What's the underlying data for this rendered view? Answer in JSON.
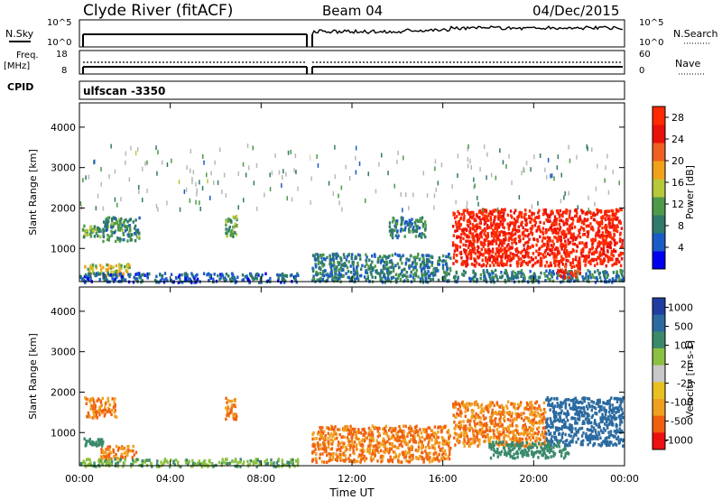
{
  "header": {
    "station": "Clyde River (fitACF)",
    "beam": "Beam 04",
    "date": "04/Dec/2015"
  },
  "strip_labels": {
    "nsky": "N.Sky",
    "nsearch": "N.Search",
    "freq_line1": "Freq.",
    "freq_line2": "[MHz]",
    "nave": "Nave",
    "cpid": "CPID",
    "cpid_value": "ulfscan -3350"
  },
  "strip_ticks": {
    "noise_left": [
      "10^5",
      "10^0"
    ],
    "noise_right": [
      "10^5",
      "10^0"
    ],
    "freq_left": [
      "18",
      "8"
    ],
    "freq_right": [
      "60",
      "0"
    ]
  },
  "colors": {
    "power_scale": [
      "#0000ee",
      "#1a5bc8",
      "#2f7a6a",
      "#4e9a4a",
      "#b7c83a",
      "#f2a21a",
      "#f06020",
      "#e8100a",
      "#ff2a00"
    ],
    "velocity_scale": [
      "#1e3fa0",
      "#2a6aa0",
      "#3a8a6a",
      "#8cc040",
      "#c8c8c8",
      "#e8c020",
      "#f0a020",
      "#f06010",
      "#ee1010"
    ],
    "scatter_gray": "#b8b8b8"
  },
  "chart_data": [
    {
      "type": "heatmap",
      "name": "power",
      "ylabel": "Slant Range [km]",
      "xlabel": "",
      "xlim": [
        0,
        24
      ],
      "ylim": [
        180,
        4600
      ],
      "x_ticks": [
        "00:00",
        "04:00",
        "08:00",
        "12:00",
        "16:00",
        "20:00",
        "00:00"
      ],
      "y_ticks": [
        1000,
        2000,
        3000,
        4000
      ],
      "colorbar": {
        "label": "Power [dB]",
        "ticks": [
          4,
          8,
          12,
          16,
          20,
          24,
          28
        ],
        "range": [
          0,
          30
        ]
      },
      "regions": [
        {
          "x": [
            0.1,
            0.9
          ],
          "y": [
            1300,
            1600
          ],
          "value": 12
        },
        {
          "x": [
            1.0,
            2.6
          ],
          "y": [
            1200,
            1800
          ],
          "value": 10
        },
        {
          "x": [
            0.2,
            2.2
          ],
          "y": [
            350,
            650
          ],
          "value": 16
        },
        {
          "x": [
            6.4,
            6.9
          ],
          "y": [
            1300,
            1850
          ],
          "value": 12
        },
        {
          "x": [
            0,
            9.6
          ],
          "y": [
            190,
            420
          ],
          "value": 6
        },
        {
          "x": [
            10.2,
            16.3
          ],
          "y": [
            200,
            900
          ],
          "value": 8
        },
        {
          "x": [
            13.6,
            15.2
          ],
          "y": [
            1300,
            1800
          ],
          "value": 8
        },
        {
          "x": [
            16.4,
            23.9
          ],
          "y": [
            600,
            2000
          ],
          "value": 28
        },
        {
          "x": [
            16.4,
            23.9
          ],
          "y": [
            200,
            500
          ],
          "value": 8
        },
        {
          "x": [
            21.0,
            22.0
          ],
          "y": [
            300,
            600
          ],
          "value": 26
        },
        {
          "x": [
            0,
            24
          ],
          "y": [
            2000,
            3600
          ],
          "value": 10
        }
      ]
    },
    {
      "type": "heatmap",
      "name": "velocity",
      "ylabel": "Slant Range [km]",
      "xlabel": "Time UT",
      "xlim": [
        0,
        24
      ],
      "ylim": [
        180,
        4600
      ],
      "x_ticks": [
        "00:00",
        "04:00",
        "08:00",
        "12:00",
        "16:00",
        "20:00",
        "00:00"
      ],
      "y_ticks": [
        1000,
        2000,
        3000,
        4000
      ],
      "colorbar": {
        "label": "Velocity [m s-1]",
        "ticks": [
          1000,
          500,
          100,
          25,
          -25,
          -100,
          -500,
          -1000
        ]
      },
      "regions": [
        {
          "x": [
            0.2,
            1.6
          ],
          "y": [
            1400,
            1900
          ],
          "value": -300
        },
        {
          "x": [
            0.9,
            2.5
          ],
          "y": [
            350,
            700
          ],
          "value": -300
        },
        {
          "x": [
            0.1,
            1.0
          ],
          "y": [
            700,
            900
          ],
          "value": 200
        },
        {
          "x": [
            6.4,
            6.9
          ],
          "y": [
            1300,
            1900
          ],
          "value": -300
        },
        {
          "x": [
            0,
            9.6
          ],
          "y": [
            190,
            380
          ],
          "value": 50
        },
        {
          "x": [
            10.2,
            16.3
          ],
          "y": [
            300,
            1200
          ],
          "value": -300
        },
        {
          "x": [
            16.4,
            20.5
          ],
          "y": [
            700,
            1800
          ],
          "value": -300
        },
        {
          "x": [
            20.5,
            23.9
          ],
          "y": [
            700,
            1900
          ],
          "value": 500
        },
        {
          "x": [
            18.0,
            21.5
          ],
          "y": [
            400,
            800
          ],
          "value": 200
        }
      ]
    }
  ]
}
